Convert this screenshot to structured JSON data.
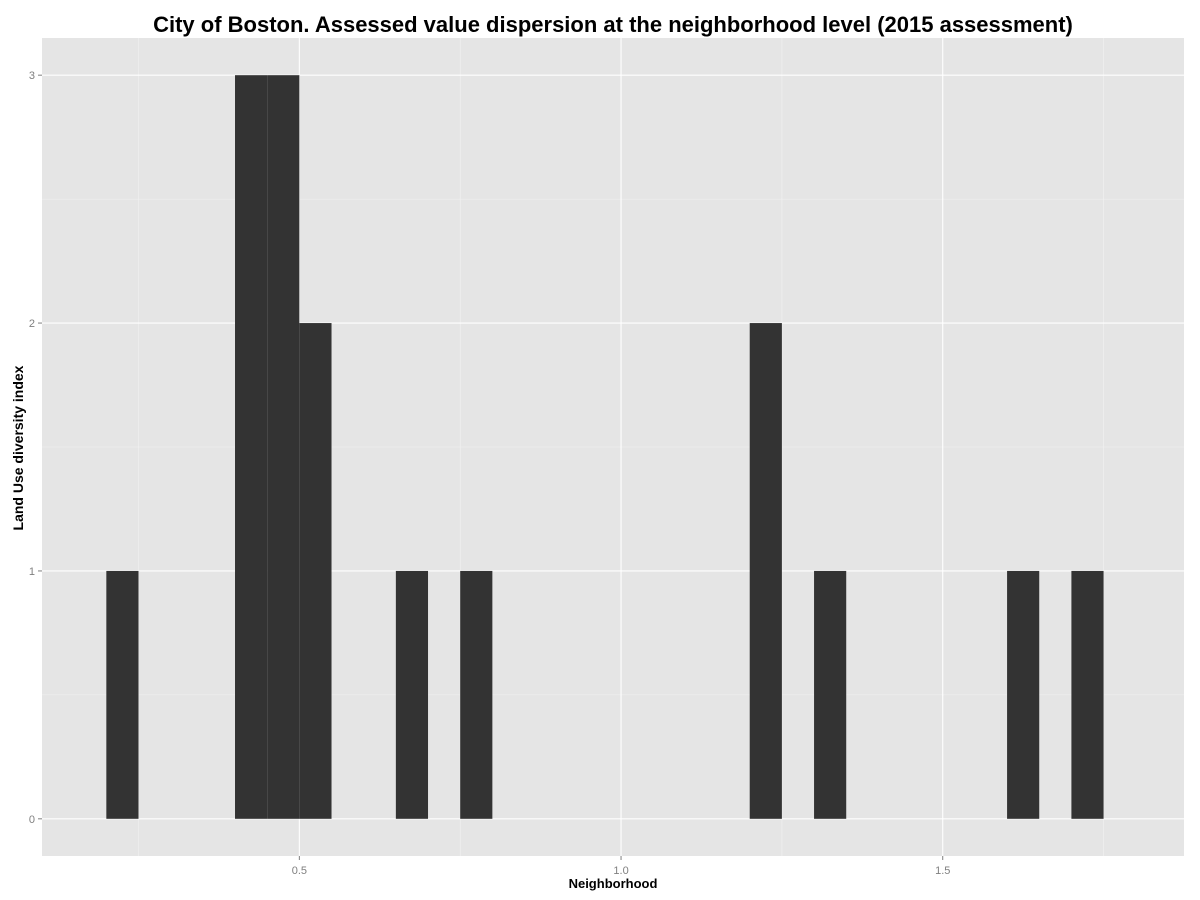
{
  "chart_data": {
    "type": "bar",
    "title": "City of Boston. Assessed value dispersion at the neighborhood level (2015 assessment)",
    "xlabel": "Neighborhood",
    "ylabel": "Land Use diversity index",
    "x_ticks": [
      "0.5",
      "1.0",
      "1.5"
    ],
    "y_ticks": [
      "0",
      "1",
      "2",
      "3"
    ],
    "xlim": [
      0.1,
      1.875
    ],
    "ylim": [
      -0.15,
      3.15
    ],
    "bin_width": 0.05,
    "bins": [
      {
        "start": 0.2,
        "end": 0.25,
        "count": 1
      },
      {
        "start": 0.4,
        "end": 0.45,
        "count": 3
      },
      {
        "start": 0.45,
        "end": 0.5,
        "count": 3
      },
      {
        "start": 0.5,
        "end": 0.55,
        "count": 2
      },
      {
        "start": 0.65,
        "end": 0.7,
        "count": 1
      },
      {
        "start": 0.75,
        "end": 0.8,
        "count": 1
      },
      {
        "start": 1.2,
        "end": 1.25,
        "count": 2
      },
      {
        "start": 1.3,
        "end": 1.35,
        "count": 1
      },
      {
        "start": 1.6,
        "end": 1.65,
        "count": 1
      },
      {
        "start": 1.7,
        "end": 1.75,
        "count": 1
      }
    ],
    "grid": true,
    "legend": "none",
    "colors": {
      "panel": "#e5e5e5",
      "grid": "#ffffff",
      "bar": "#333333",
      "tick_label": "#7f7f7f"
    }
  }
}
